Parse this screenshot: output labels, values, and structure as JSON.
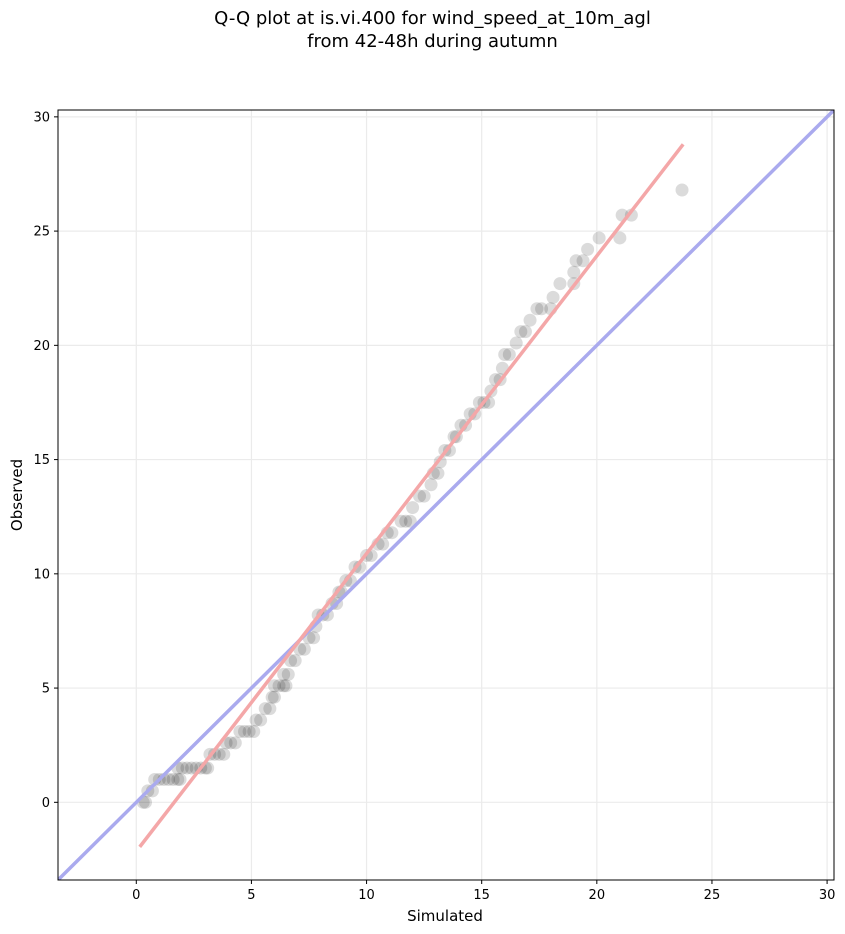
{
  "title_line1": "Q-Q plot at is.vi.400 for wind_speed_at_10m_agl",
  "title_line2": "from 42-48h during autumn",
  "chart_data": {
    "type": "scatter",
    "xlabel": "Simulated",
    "ylabel": "Observed",
    "xlim": [
      -3.4,
      30.3
    ],
    "ylim": [
      -3.4,
      30.3
    ],
    "xticks": [
      0,
      5,
      10,
      15,
      20,
      25,
      30
    ],
    "yticks": [
      0,
      5,
      10,
      15,
      20,
      25,
      30
    ],
    "grid": true,
    "point_color": "#000000",
    "identity_line": {
      "from": [
        -3.4,
        -3.4
      ],
      "to": [
        30.3,
        30.3
      ],
      "color": "#aaaaee"
    },
    "fit_line": {
      "from": [
        0.15,
        -1.95
      ],
      "to": [
        23.75,
        28.8
      ],
      "color": "#f4a7a8"
    },
    "points": [
      [
        0.3,
        0.0
      ],
      [
        0.4,
        0.0
      ],
      [
        0.5,
        0.5
      ],
      [
        0.7,
        0.5
      ],
      [
        0.8,
        1.0
      ],
      [
        1.0,
        1.0
      ],
      [
        1.2,
        1.0
      ],
      [
        1.4,
        1.0
      ],
      [
        1.6,
        1.0
      ],
      [
        1.8,
        1.0
      ],
      [
        1.9,
        1.0
      ],
      [
        1.8,
        1.5
      ],
      [
        2.0,
        1.5
      ],
      [
        2.2,
        1.5
      ],
      [
        2.4,
        1.5
      ],
      [
        2.6,
        1.5
      ],
      [
        2.8,
        1.5
      ],
      [
        3.0,
        1.5
      ],
      [
        3.1,
        1.5
      ],
      [
        3.2,
        2.1
      ],
      [
        3.4,
        2.1
      ],
      [
        3.6,
        2.1
      ],
      [
        3.8,
        2.1
      ],
      [
        3.9,
        2.6
      ],
      [
        4.1,
        2.6
      ],
      [
        4.3,
        2.6
      ],
      [
        4.5,
        3.1
      ],
      [
        4.7,
        3.1
      ],
      [
        4.9,
        3.1
      ],
      [
        5.1,
        3.1
      ],
      [
        5.2,
        3.6
      ],
      [
        5.4,
        3.6
      ],
      [
        5.6,
        4.1
      ],
      [
        5.8,
        4.1
      ],
      [
        5.9,
        4.6
      ],
      [
        6.0,
        4.6
      ],
      [
        6.0,
        5.1
      ],
      [
        6.2,
        5.1
      ],
      [
        6.4,
        5.1
      ],
      [
        6.5,
        5.1
      ],
      [
        6.4,
        5.6
      ],
      [
        6.6,
        5.6
      ],
      [
        6.7,
        6.2
      ],
      [
        6.9,
        6.2
      ],
      [
        7.1,
        6.7
      ],
      [
        7.3,
        6.7
      ],
      [
        7.5,
        7.2
      ],
      [
        7.7,
        7.2
      ],
      [
        7.8,
        7.7
      ],
      [
        7.9,
        8.2
      ],
      [
        8.1,
        8.2
      ],
      [
        8.3,
        8.2
      ],
      [
        8.5,
        8.7
      ],
      [
        8.7,
        8.7
      ],
      [
        8.8,
        9.2
      ],
      [
        8.9,
        9.2
      ],
      [
        9.1,
        9.7
      ],
      [
        9.3,
        9.7
      ],
      [
        9.5,
        10.3
      ],
      [
        9.7,
        10.3
      ],
      [
        10.0,
        10.8
      ],
      [
        10.2,
        10.8
      ],
      [
        10.5,
        11.3
      ],
      [
        10.7,
        11.3
      ],
      [
        10.9,
        11.8
      ],
      [
        11.1,
        11.8
      ],
      [
        11.5,
        12.3
      ],
      [
        11.7,
        12.3
      ],
      [
        11.9,
        12.3
      ],
      [
        12.0,
        12.9
      ],
      [
        12.3,
        13.4
      ],
      [
        12.5,
        13.4
      ],
      [
        12.8,
        13.9
      ],
      [
        12.9,
        14.4
      ],
      [
        13.1,
        14.4
      ],
      [
        13.2,
        14.9
      ],
      [
        13.4,
        15.4
      ],
      [
        13.6,
        15.4
      ],
      [
        13.8,
        16.0
      ],
      [
        13.9,
        16.0
      ],
      [
        14.1,
        16.5
      ],
      [
        14.3,
        16.5
      ],
      [
        14.5,
        17.0
      ],
      [
        14.7,
        17.0
      ],
      [
        14.9,
        17.5
      ],
      [
        15.1,
        17.5
      ],
      [
        15.3,
        17.5
      ],
      [
        15.4,
        18.0
      ],
      [
        15.6,
        18.5
      ],
      [
        15.8,
        18.5
      ],
      [
        15.9,
        19.0
      ],
      [
        16.0,
        19.6
      ],
      [
        16.2,
        19.6
      ],
      [
        16.5,
        20.1
      ],
      [
        16.7,
        20.6
      ],
      [
        16.9,
        20.6
      ],
      [
        17.1,
        21.1
      ],
      [
        17.4,
        21.6
      ],
      [
        17.6,
        21.6
      ],
      [
        18.0,
        21.6
      ],
      [
        18.1,
        22.1
      ],
      [
        18.4,
        22.7
      ],
      [
        19.0,
        22.7
      ],
      [
        19.0,
        23.2
      ],
      [
        19.1,
        23.7
      ],
      [
        19.4,
        23.7
      ],
      [
        19.6,
        24.2
      ],
      [
        20.1,
        24.7
      ],
      [
        21.0,
        24.7
      ],
      [
        21.1,
        25.7
      ],
      [
        21.5,
        25.7
      ],
      [
        23.7,
        26.8
      ]
    ]
  }
}
